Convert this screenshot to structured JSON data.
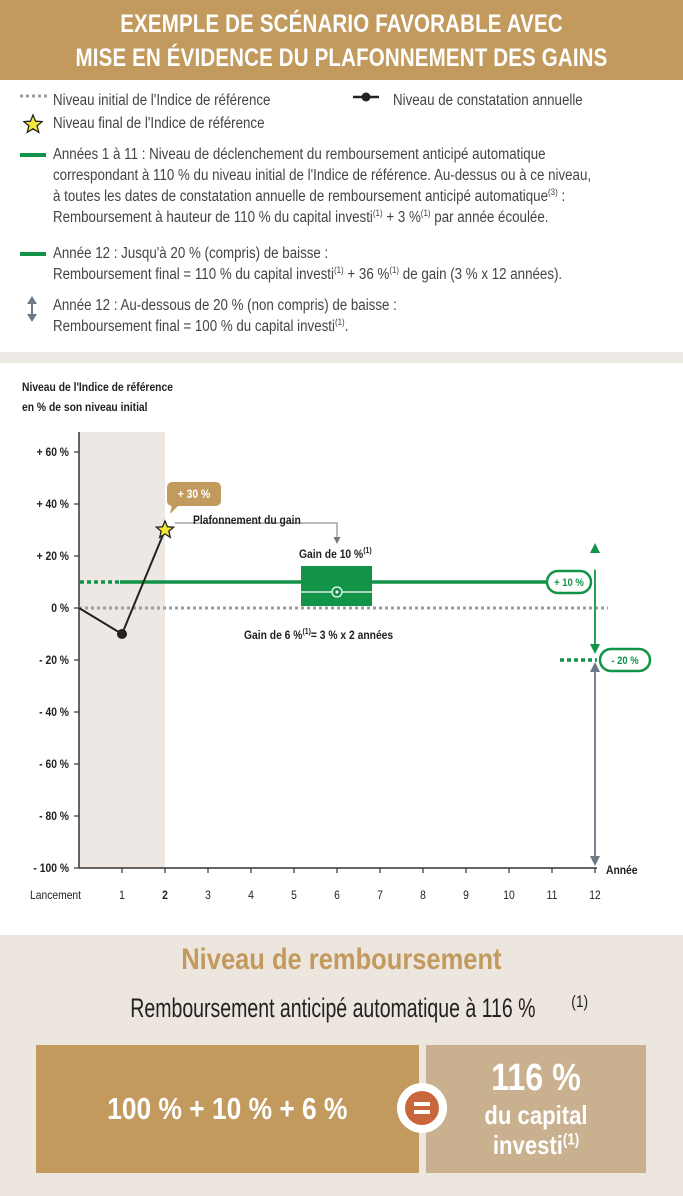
{
  "header": {
    "line1": "EXEMPLE DE SCÉNARIO FAVORABLE AVEC",
    "line2": "MISE EN ÉVIDENCE DU PLAFONNEMENT DES GAINS"
  },
  "legend": {
    "initial_level": "Niveau initial de l'Indice de référence",
    "annual_observation": "Niveau de constatation annuelle",
    "final_level": "Niveau final de l'Indice de référence",
    "years_1_11": {
      "l1": "Années 1 à 11 : Niveau de déclenchement du remboursement anticipé automatique",
      "l2": "correspondant à 110 % du niveau initial de l'Indice de référence. Au-dessus ou à ce niveau,",
      "l3a": "à toutes les dates de constatation annuelle de remboursement anticipé automatique",
      "l3sup": "(3)",
      "l3b": " :",
      "l4a": "Remboursement à hauteur de 110 % du capital investi",
      "l4sup1": "(1)",
      "l4b": " + 3 %",
      "l4sup2": "(1)",
      "l4c": " par année écoulée."
    },
    "year_12_a": {
      "l1": "Année 12 : Jusqu'à 20 % (compris) de baisse :",
      "l2a": "Remboursement final = 110 % du capital investi",
      "l2sup1": "(1)",
      "l2b": " + 36 %",
      "l2sup2": "(1)",
      "l2c": " de gain (3 % x 12 années)."
    },
    "year_12_b": {
      "l1": "Année 12 : Au-dessous de 20 % (non compris) de baisse :",
      "l2a": "Remboursement final = 100 % du capital investi",
      "l2sup": "(1)",
      "l2b": "."
    }
  },
  "chart_data": {
    "type": "line",
    "ylabel_line1": "Niveau de l'Indice de référence",
    "ylabel_line2": "en % de son niveau initial",
    "xlabel": "Année",
    "x_tick_labels": [
      "Lancement",
      "1",
      "2",
      "3",
      "4",
      "5",
      "6",
      "7",
      "8",
      "9",
      "10",
      "11",
      "12"
    ],
    "y_tick_labels": [
      "+ 60 %",
      "+ 40 %",
      "+ 20 %",
      "0 %",
      "- 20 %",
      "- 40 %",
      "- 60 %",
      "- 80 %",
      "- 100 %"
    ],
    "y_ticks": [
      60,
      40,
      20,
      0,
      -20,
      -40,
      -60,
      -80,
      -100
    ],
    "ylim": [
      -100,
      60
    ],
    "series": [
      {
        "x": [
          0,
          1,
          2
        ],
        "y": [
          0,
          -10,
          30
        ]
      }
    ],
    "initial_level": 0,
    "autocall_level": 10,
    "protection_level": -20,
    "shaded_period": [
      0,
      2
    ],
    "annotations": {
      "final_badge": "+ 30 %",
      "cap": "Plafonnement du gain",
      "gain_10": "Gain de 10 %",
      "gain_10_sup": "(1)",
      "gain_6a": "Gain de 6 %",
      "gain_6_sup": "(1)",
      "gain_6b": "= 3 % x 2 années",
      "plus10": "+ 10 %",
      "minus20": "- 20 %"
    },
    "colors": {
      "green": "#119448",
      "gold": "#c29a5e",
      "axis": "#333333",
      "grey_dotted": "#9d9d9d",
      "shade": "#ede8e3",
      "arrow": "#6b7a86"
    }
  },
  "bottom": {
    "title": "Niveau de remboursement",
    "subtitle": "Remboursement anticipé automatique à 116 %",
    "subtitle_sup": "(1)",
    "equation": "100 % + 10 % + 6 %",
    "result_big": "116 %",
    "result_l1": "du capital",
    "result_l2": "investi",
    "result_sup": "(1)"
  }
}
